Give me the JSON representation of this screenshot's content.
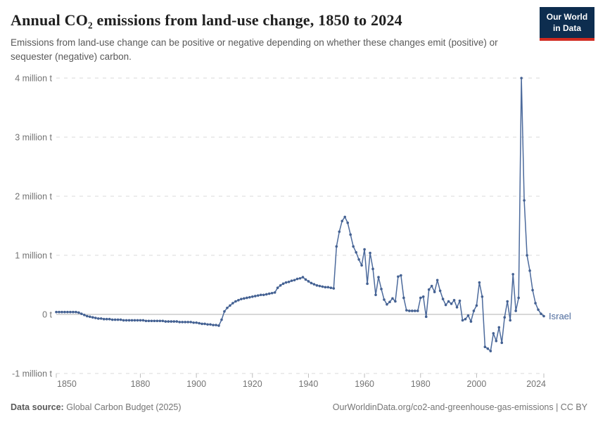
{
  "header": {
    "title": "Annual CO₂ emissions from land-use change, 1850 to 2024",
    "subtitle": "Emissions from land-use change can be positive or negative depending on whether these changes emit (positive) or sequester (negative) carbon.",
    "logo": {
      "line1": "Our World",
      "line2": "in Data"
    }
  },
  "footer": {
    "source_label": "Data source:",
    "source_value": "Global Carbon Budget (2025)",
    "link": "OurWorldinData.org/co2-and-greenhouse-gas-emissions | CC BY"
  },
  "colors": {
    "line": "#4c6a9c",
    "marker": "#446192",
    "entity_label": "#4c6a9c",
    "grid": "#dadada",
    "zero_line": "#b0b0b0",
    "tick_mark": "#bdbdbd",
    "axis_text": "#737373"
  },
  "chart_data": {
    "type": "line",
    "title": "Annual CO₂ emissions from land-use change, 1850 to 2024",
    "unit": "million tonnes of CO₂",
    "xlim": [
      1850,
      2024
    ],
    "ylim": [
      -1,
      4
    ],
    "grid": "horizontal dashed",
    "zero_line": true,
    "legend_position": "end-of-line label",
    "x_start": 1850,
    "x_step": 1,
    "y_ticks": [
      {
        "value": 4,
        "label": "4 million t"
      },
      {
        "value": 3,
        "label": "3 million t"
      },
      {
        "value": 2,
        "label": "2 million t"
      },
      {
        "value": 1,
        "label": "1 million t"
      },
      {
        "value": 0,
        "label": "0 t"
      },
      {
        "value": -1,
        "label": "-1 million t"
      }
    ],
    "x_ticks": [
      {
        "value": 1850,
        "label": "1850"
      },
      {
        "value": 1880,
        "label": "1880"
      },
      {
        "value": 1900,
        "label": "1900"
      },
      {
        "value": 1920,
        "label": "1920"
      },
      {
        "value": 1940,
        "label": "1940"
      },
      {
        "value": 1960,
        "label": "1960"
      },
      {
        "value": 1980,
        "label": "1980"
      },
      {
        "value": 2000,
        "label": "2000"
      },
      {
        "value": 2024,
        "label": "2024"
      }
    ],
    "series": [
      {
        "name": "Israel",
        "color": "#4c6a9c",
        "values": [
          0.04,
          0.04,
          0.04,
          0.04,
          0.04,
          0.04,
          0.04,
          0.04,
          0.03,
          0.01,
          -0.01,
          -0.03,
          -0.04,
          -0.05,
          -0.06,
          -0.07,
          -0.07,
          -0.08,
          -0.08,
          -0.08,
          -0.09,
          -0.09,
          -0.09,
          -0.09,
          -0.1,
          -0.1,
          -0.1,
          -0.1,
          -0.1,
          -0.1,
          -0.1,
          -0.1,
          -0.11,
          -0.11,
          -0.11,
          -0.11,
          -0.11,
          -0.11,
          -0.11,
          -0.12,
          -0.12,
          -0.12,
          -0.12,
          -0.12,
          -0.13,
          -0.13,
          -0.13,
          -0.13,
          -0.13,
          -0.14,
          -0.14,
          -0.15,
          -0.16,
          -0.16,
          -0.17,
          -0.17,
          -0.18,
          -0.18,
          -0.19,
          -0.09,
          0.05,
          0.11,
          0.15,
          0.19,
          0.22,
          0.24,
          0.26,
          0.27,
          0.28,
          0.29,
          0.3,
          0.31,
          0.32,
          0.33,
          0.33,
          0.34,
          0.35,
          0.36,
          0.37,
          0.45,
          0.49,
          0.52,
          0.54,
          0.55,
          0.57,
          0.58,
          0.6,
          0.61,
          0.63,
          0.59,
          0.56,
          0.53,
          0.51,
          0.49,
          0.48,
          0.47,
          0.46,
          0.46,
          0.45,
          0.44,
          1.15,
          1.4,
          1.58,
          1.65,
          1.55,
          1.35,
          1.15,
          1.05,
          0.93,
          0.83,
          1.1,
          0.52,
          1.04,
          0.77,
          0.33,
          0.63,
          0.43,
          0.25,
          0.17,
          0.21,
          0.27,
          0.22,
          0.64,
          0.66,
          0.28,
          0.07,
          0.06,
          0.06,
          0.06,
          0.06,
          0.28,
          0.3,
          -0.04,
          0.42,
          0.48,
          0.38,
          0.58,
          0.4,
          0.26,
          0.16,
          0.22,
          0.18,
          0.24,
          0.12,
          0.23,
          -0.1,
          -0.08,
          -0.02,
          -0.12,
          0.06,
          0.15,
          0.54,
          0.3,
          -0.55,
          -0.58,
          -0.62,
          -0.32,
          -0.45,
          -0.22,
          -0.48,
          -0.05,
          0.22,
          -0.1,
          0.68,
          0.06,
          0.28,
          4.0,
          1.93,
          1.0,
          0.74,
          0.41,
          0.19,
          0.08,
          0.01,
          -0.03
        ]
      }
    ]
  }
}
